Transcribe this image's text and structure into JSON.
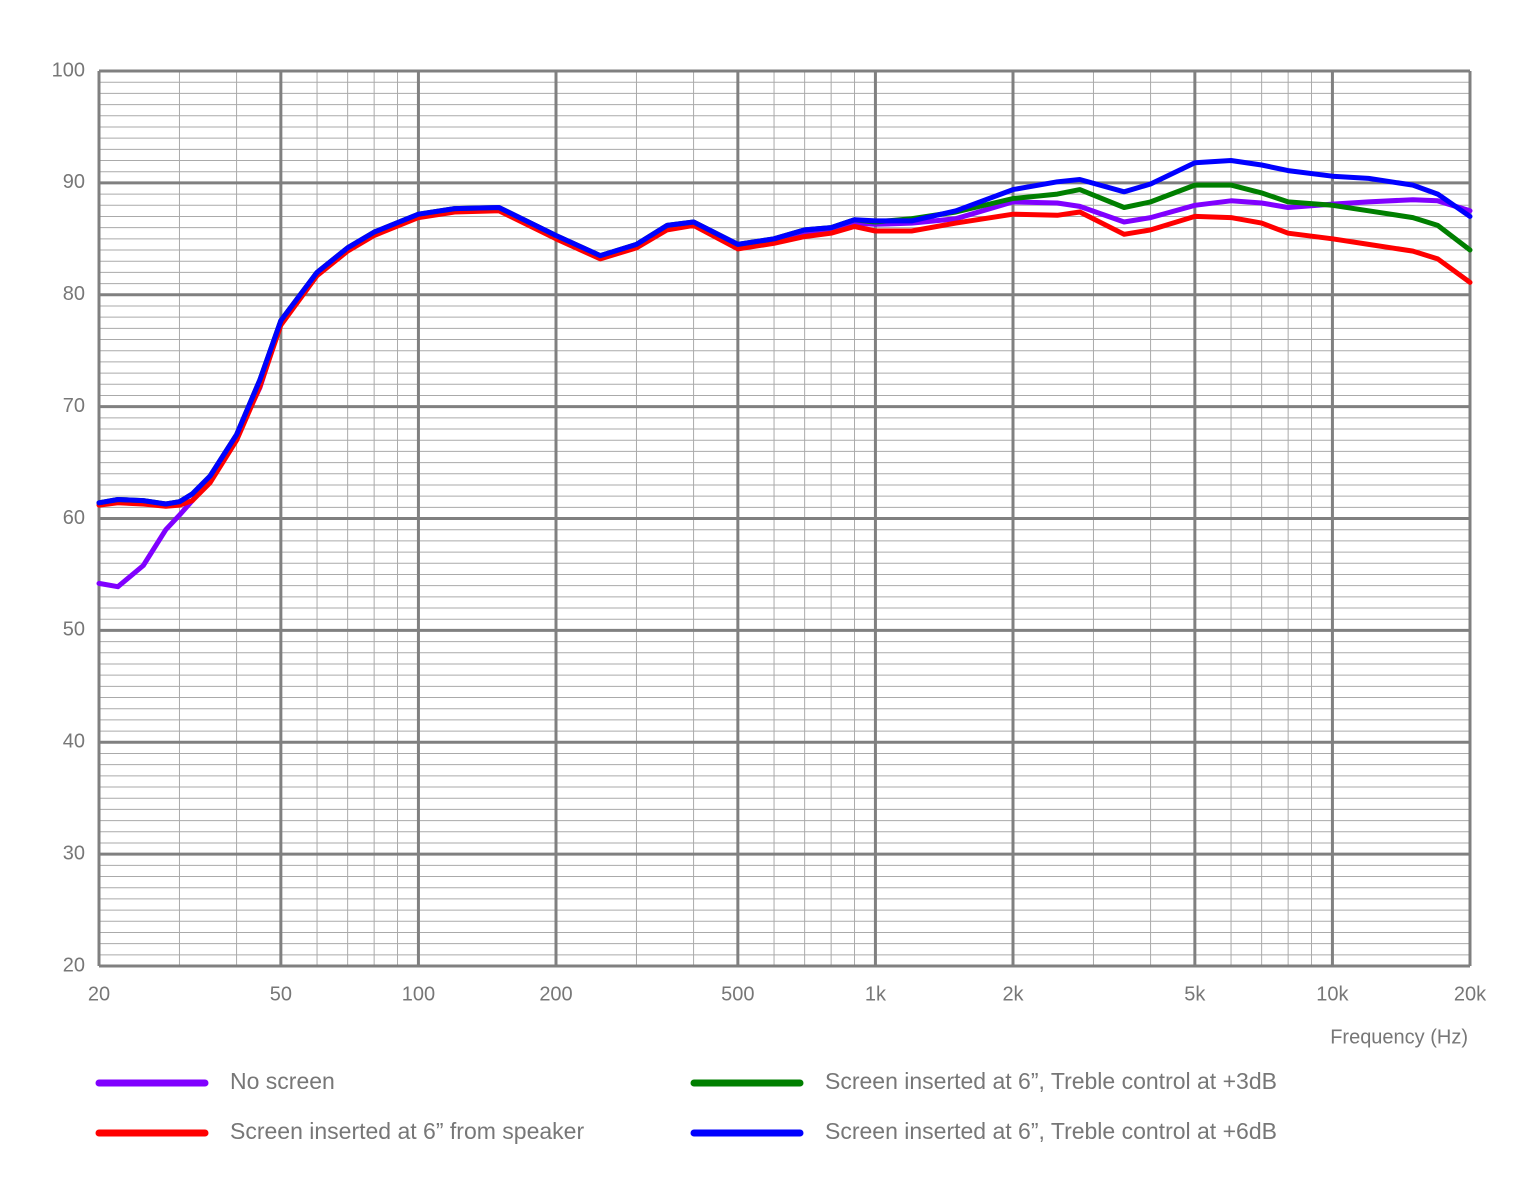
{
  "chart_data": {
    "type": "line",
    "x_label": "Frequency (Hz)",
    "xscale": "log",
    "xlim": [
      20,
      20000
    ],
    "ylim": [
      20,
      100
    ],
    "xticks": [
      20,
      50,
      100,
      200,
      500,
      {
        "value": 1000,
        "label": "1k"
      },
      {
        "value": 2000,
        "label": "2k"
      },
      {
        "value": 5000,
        "label": "5k"
      },
      {
        "value": 10000,
        "label": "10k"
      },
      {
        "value": 20000,
        "label": "20k"
      }
    ],
    "yticks": [
      20,
      30,
      40,
      50,
      60,
      70,
      80,
      90,
      100
    ],
    "xminorticks": [
      30,
      40,
      60,
      70,
      80,
      90,
      300,
      400,
      600,
      700,
      800,
      900,
      3000,
      4000,
      6000,
      7000,
      8000,
      9000
    ],
    "yminorticks": [
      21,
      22,
      23,
      24,
      25,
      26,
      27,
      28,
      29,
      31,
      32,
      33,
      34,
      35,
      36,
      37,
      38,
      39,
      41,
      42,
      43,
      44,
      45,
      46,
      47,
      48,
      49,
      51,
      52,
      53,
      54,
      55,
      56,
      57,
      58,
      59,
      61,
      62,
      63,
      64,
      65,
      66,
      67,
      68,
      69,
      71,
      72,
      73,
      74,
      75,
      76,
      77,
      78,
      79,
      81,
      82,
      83,
      84,
      85,
      86,
      87,
      88,
      89,
      91,
      92,
      93,
      94,
      95,
      96,
      97,
      98,
      99
    ],
    "grid": true,
    "x": [
      20,
      22,
      25,
      28,
      30,
      32,
      35,
      40,
      45,
      50,
      60,
      70,
      80,
      100,
      120,
      150,
      200,
      250,
      300,
      350,
      400,
      500,
      600,
      700,
      800,
      900,
      1000,
      1200,
      1500,
      2000,
      2500,
      2800,
      3500,
      4000,
      5000,
      6000,
      7000,
      8000,
      10000,
      12000,
      15000,
      17000,
      20000
    ],
    "series": [
      {
        "name": "No screen",
        "color": "#8000ff",
        "values": [
          54.2,
          53.9,
          55.8,
          59.0,
          60.3,
          61.6,
          63.5,
          67.3,
          71.7,
          77.5,
          81.9,
          84.0,
          85.5,
          87.0,
          87.6,
          87.7,
          85.2,
          83.4,
          84.4,
          86.0,
          86.4,
          84.3,
          84.8,
          85.5,
          85.8,
          86.4,
          86.3,
          86.4,
          86.8,
          88.3,
          88.2,
          87.9,
          86.5,
          86.9,
          88.0,
          88.4,
          88.2,
          87.8,
          88.1,
          88.3,
          88.5,
          88.4,
          87.5
        ]
      },
      {
        "name": "Screen inserted at 6” from speaker",
        "color": "#ff0000",
        "values": [
          61.2,
          61.4,
          61.3,
          61.1,
          61.2,
          61.6,
          63.2,
          67.0,
          71.8,
          77.3,
          81.7,
          83.9,
          85.3,
          86.9,
          87.4,
          87.5,
          85.0,
          83.2,
          84.2,
          85.8,
          86.2,
          84.1,
          84.6,
          85.2,
          85.5,
          86.1,
          85.7,
          85.7,
          86.4,
          87.2,
          87.1,
          87.4,
          85.4,
          85.8,
          87.0,
          86.9,
          86.4,
          85.5,
          85.0,
          84.5,
          83.9,
          83.2,
          81.1
        ]
      },
      {
        "name": "Screen inserted at 6”, Treble control at +3dB",
        "color": "#007f00",
        "values": [
          61.4,
          61.7,
          61.6,
          61.3,
          61.5,
          62.2,
          63.8,
          67.5,
          72.4,
          77.7,
          82.0,
          84.2,
          85.6,
          87.2,
          87.7,
          87.8,
          85.3,
          83.5,
          84.5,
          86.2,
          86.5,
          84.5,
          85.0,
          85.8,
          86.0,
          86.7,
          86.5,
          86.8,
          87.4,
          88.6,
          89.0,
          89.4,
          87.8,
          88.3,
          89.8,
          89.8,
          89.1,
          88.3,
          88.0,
          87.5,
          86.9,
          86.2,
          84.0
        ]
      },
      {
        "name": "Screen inserted at 6”, Treble control at +6dB",
        "color": "#0000ff",
        "values": [
          61.4,
          61.7,
          61.6,
          61.3,
          61.5,
          62.2,
          63.8,
          67.5,
          72.4,
          77.7,
          82.0,
          84.2,
          85.6,
          87.2,
          87.7,
          87.8,
          85.3,
          83.5,
          84.5,
          86.2,
          86.5,
          84.5,
          85.0,
          85.8,
          86.0,
          86.7,
          86.6,
          86.6,
          87.5,
          89.4,
          90.1,
          90.3,
          89.2,
          89.9,
          91.8,
          92.0,
          91.6,
          91.1,
          90.6,
          90.4,
          89.8,
          89.0,
          87.0
        ]
      }
    ]
  }
}
